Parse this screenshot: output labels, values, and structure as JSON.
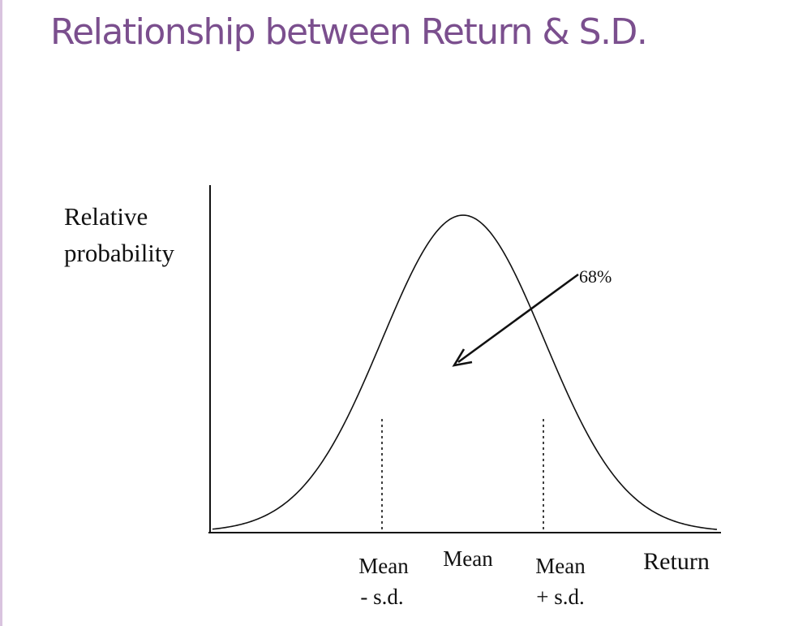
{
  "slide": {
    "title": "Relationship between Return & S.D."
  },
  "figure": {
    "y_axis_label": [
      "Relative",
      "probability"
    ],
    "x_axis_label": "Return",
    "annotation": "68%",
    "tick_labels": {
      "mean_minus_sd": [
        "Mean",
        "- s.d."
      ],
      "mean": "Mean",
      "mean_plus_sd": [
        "Mean",
        "+ s.d."
      ]
    }
  },
  "colors": {
    "title": "#7b4f8e",
    "ink": "#111111"
  }
}
